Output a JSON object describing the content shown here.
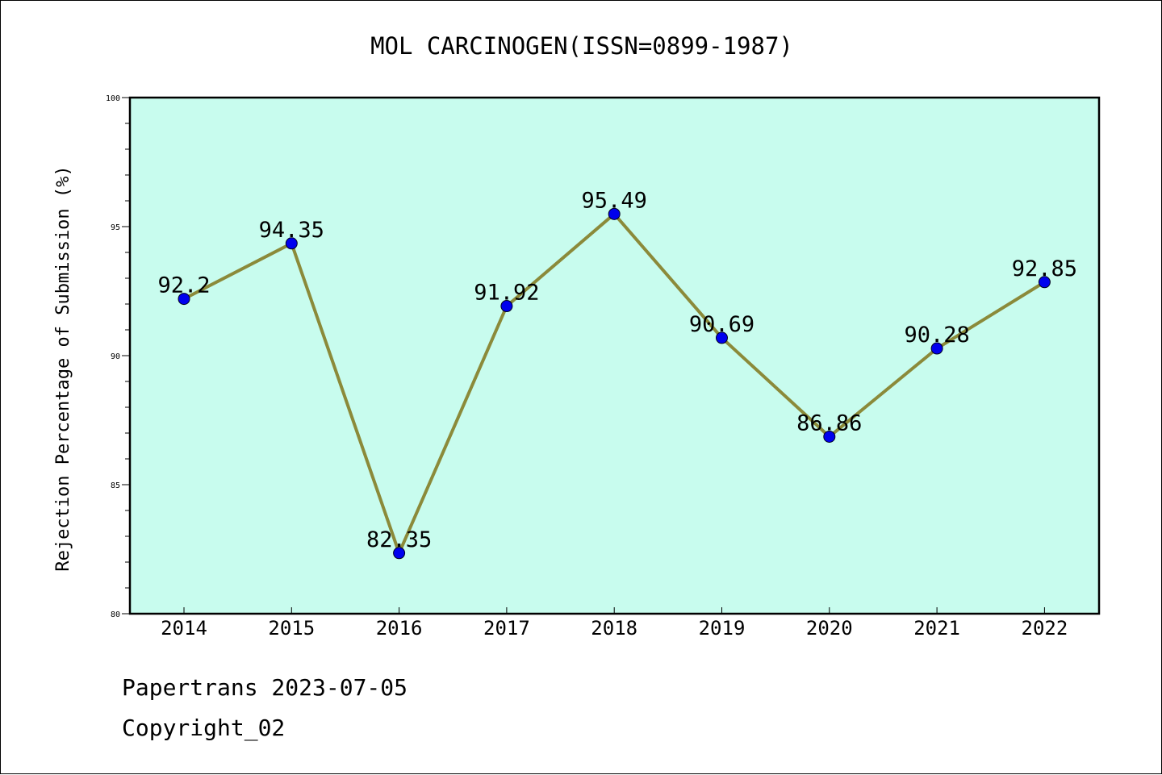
{
  "chart_data": {
    "type": "line",
    "title": "MOL CARCINOGEN(ISSN=0899-1987)",
    "xlabel": "",
    "ylabel": "Rejection Percentage of Submission (%)",
    "categories": [
      "2014",
      "2015",
      "2016",
      "2017",
      "2018",
      "2019",
      "2020",
      "2021",
      "2022"
    ],
    "values": [
      92.2,
      94.35,
      82.35,
      91.92,
      95.49,
      90.69,
      86.86,
      90.28,
      92.85
    ],
    "data_labels": [
      "92.2",
      "94.35",
      "82.35",
      "91.92",
      "95.49",
      "90.69",
      "86.86",
      "90.28",
      "92.85"
    ],
    "ylim": [
      80,
      100
    ],
    "yticks": [
      "80",
      "85",
      "90",
      "95",
      "100"
    ],
    "grid": false,
    "colors": {
      "plot_background": "#c8fcee",
      "line": "#8b8a3a",
      "marker": "#0000ee"
    }
  },
  "footer": {
    "line1": "Papertrans 2023-07-05",
    "line2": "Copyright_02"
  }
}
